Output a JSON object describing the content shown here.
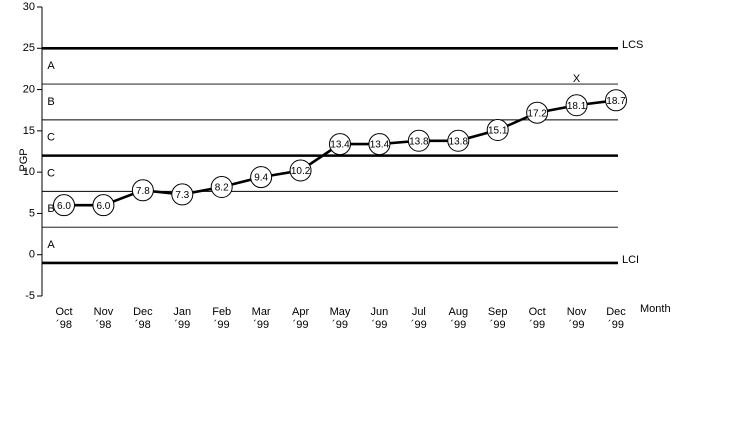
{
  "chart_data": {
    "type": "control",
    "y_label": "PGP",
    "x_label": "Month",
    "categories": [
      [
        "Oct",
        "´98"
      ],
      [
        "Nov",
        "´98"
      ],
      [
        "Dec",
        "´98"
      ],
      [
        "Jan",
        "´99"
      ],
      [
        "Feb",
        "´99"
      ],
      [
        "Mar",
        "´99"
      ],
      [
        "Apr",
        "´99"
      ],
      [
        "May",
        "´99"
      ],
      [
        "Jun",
        "´99"
      ],
      [
        "Jul",
        "´99"
      ],
      [
        "Aug",
        "´99"
      ],
      [
        "Sep",
        "´99"
      ],
      [
        "Oct",
        "´99"
      ],
      [
        "Nov",
        "´99"
      ],
      [
        "Dec",
        "´99"
      ]
    ],
    "values": [
      6.0,
      6.0,
      7.8,
      7.3,
      8.2,
      9.4,
      10.2,
      13.4,
      13.4,
      13.8,
      13.8,
      15.1,
      17.2,
      18.1,
      18.7
    ],
    "value_labels": [
      "6.0",
      "6.0",
      "7.8",
      "7.3",
      "8.2",
      "9.4",
      "10.2",
      "13.4",
      "13.4",
      "13.8",
      "13.8",
      "15.1",
      "17.2",
      "18.1",
      "18.7"
    ],
    "color": "#000000",
    "control_lines": [
      {
        "label": "LCS",
        "value": 25,
        "weight": "thick"
      },
      {
        "value": 20.67,
        "weight": "thin"
      },
      {
        "value": 16.33,
        "weight": "thin"
      },
      {
        "value": 12,
        "weight": "thick"
      },
      {
        "value": 7.67,
        "weight": "thin"
      },
      {
        "value": 3.33,
        "weight": "thin"
      },
      {
        "label": "LCI",
        "value": -1,
        "weight": "thick"
      }
    ],
    "zone_labels": [
      "A",
      "B",
      "C",
      "C",
      "B",
      "A"
    ],
    "annotation": "X",
    "ylim": [
      -5,
      30
    ],
    "yticks": [
      -5,
      0,
      5,
      10,
      15,
      20,
      25,
      30
    ]
  }
}
